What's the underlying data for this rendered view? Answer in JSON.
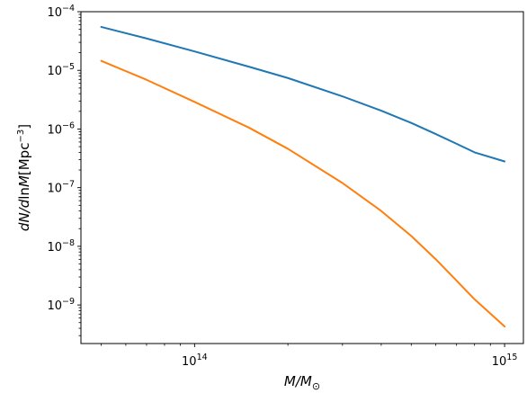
{
  "chart_data": {
    "type": "line",
    "xscale": "log",
    "yscale": "log",
    "xlim": [
      43000000000000.0,
      1150000000000000.0
    ],
    "ylim": [
      2.2e-10,
      0.0001
    ],
    "grid": false,
    "legend": "none",
    "xlabel": {
      "main": "M/M",
      "sub": "⊙"
    },
    "ylabel": {
      "pre": "dN/d",
      "ln": "ln",
      "m": "M",
      "bracket": "[Mpc",
      "exp": "−3",
      "close": "]"
    },
    "xticks": [
      {
        "value": 100000000000000.0,
        "base": "10",
        "exp": "14"
      },
      {
        "value": 1000000000000000.0,
        "base": "10",
        "exp": "15"
      }
    ],
    "yticks": [
      {
        "value": 0.0001,
        "base": "10",
        "exp": "−4"
      },
      {
        "value": 1e-05,
        "base": "10",
        "exp": "−5"
      },
      {
        "value": 1e-06,
        "base": "10",
        "exp": "−6"
      },
      {
        "value": 1e-07,
        "base": "10",
        "exp": "−7"
      },
      {
        "value": 1e-08,
        "base": "10",
        "exp": "−8"
      },
      {
        "value": 1e-09,
        "base": "10",
        "exp": "−9"
      }
    ],
    "series": [
      {
        "color": "#1f77b4",
        "x": [
          50000000000000.0,
          70000000000000.0,
          100000000000000.0,
          150000000000000.0,
          200000000000000.0,
          300000000000000.0,
          400000000000000.0,
          500000000000000.0,
          600000000000000.0,
          700000000000000.0,
          800000000000000.0,
          1000000000000000.0
        ],
        "y": [
          5.5e-05,
          3.5e-05,
          2.1e-05,
          1.15e-05,
          7.4e-06,
          3.6e-06,
          2.05e-06,
          1.27e-06,
          8.2e-07,
          5.6e-07,
          4e-07,
          2.8e-07
        ]
      },
      {
        "color": "#ff7f0e",
        "x": [
          50000000000000.0,
          70000000000000.0,
          100000000000000.0,
          150000000000000.0,
          200000000000000.0,
          300000000000000.0,
          400000000000000.0,
          500000000000000.0,
          600000000000000.0,
          700000000000000.0,
          800000000000000.0,
          1000000000000000.0
        ],
        "y": [
          1.45e-05,
          6.9e-06,
          2.9e-06,
          1.05e-06,
          4.6e-07,
          1.2e-07,
          4e-08,
          1.5e-08,
          6e-09,
          2.6e-09,
          1.25e-09,
          4.3e-10
        ]
      }
    ]
  }
}
